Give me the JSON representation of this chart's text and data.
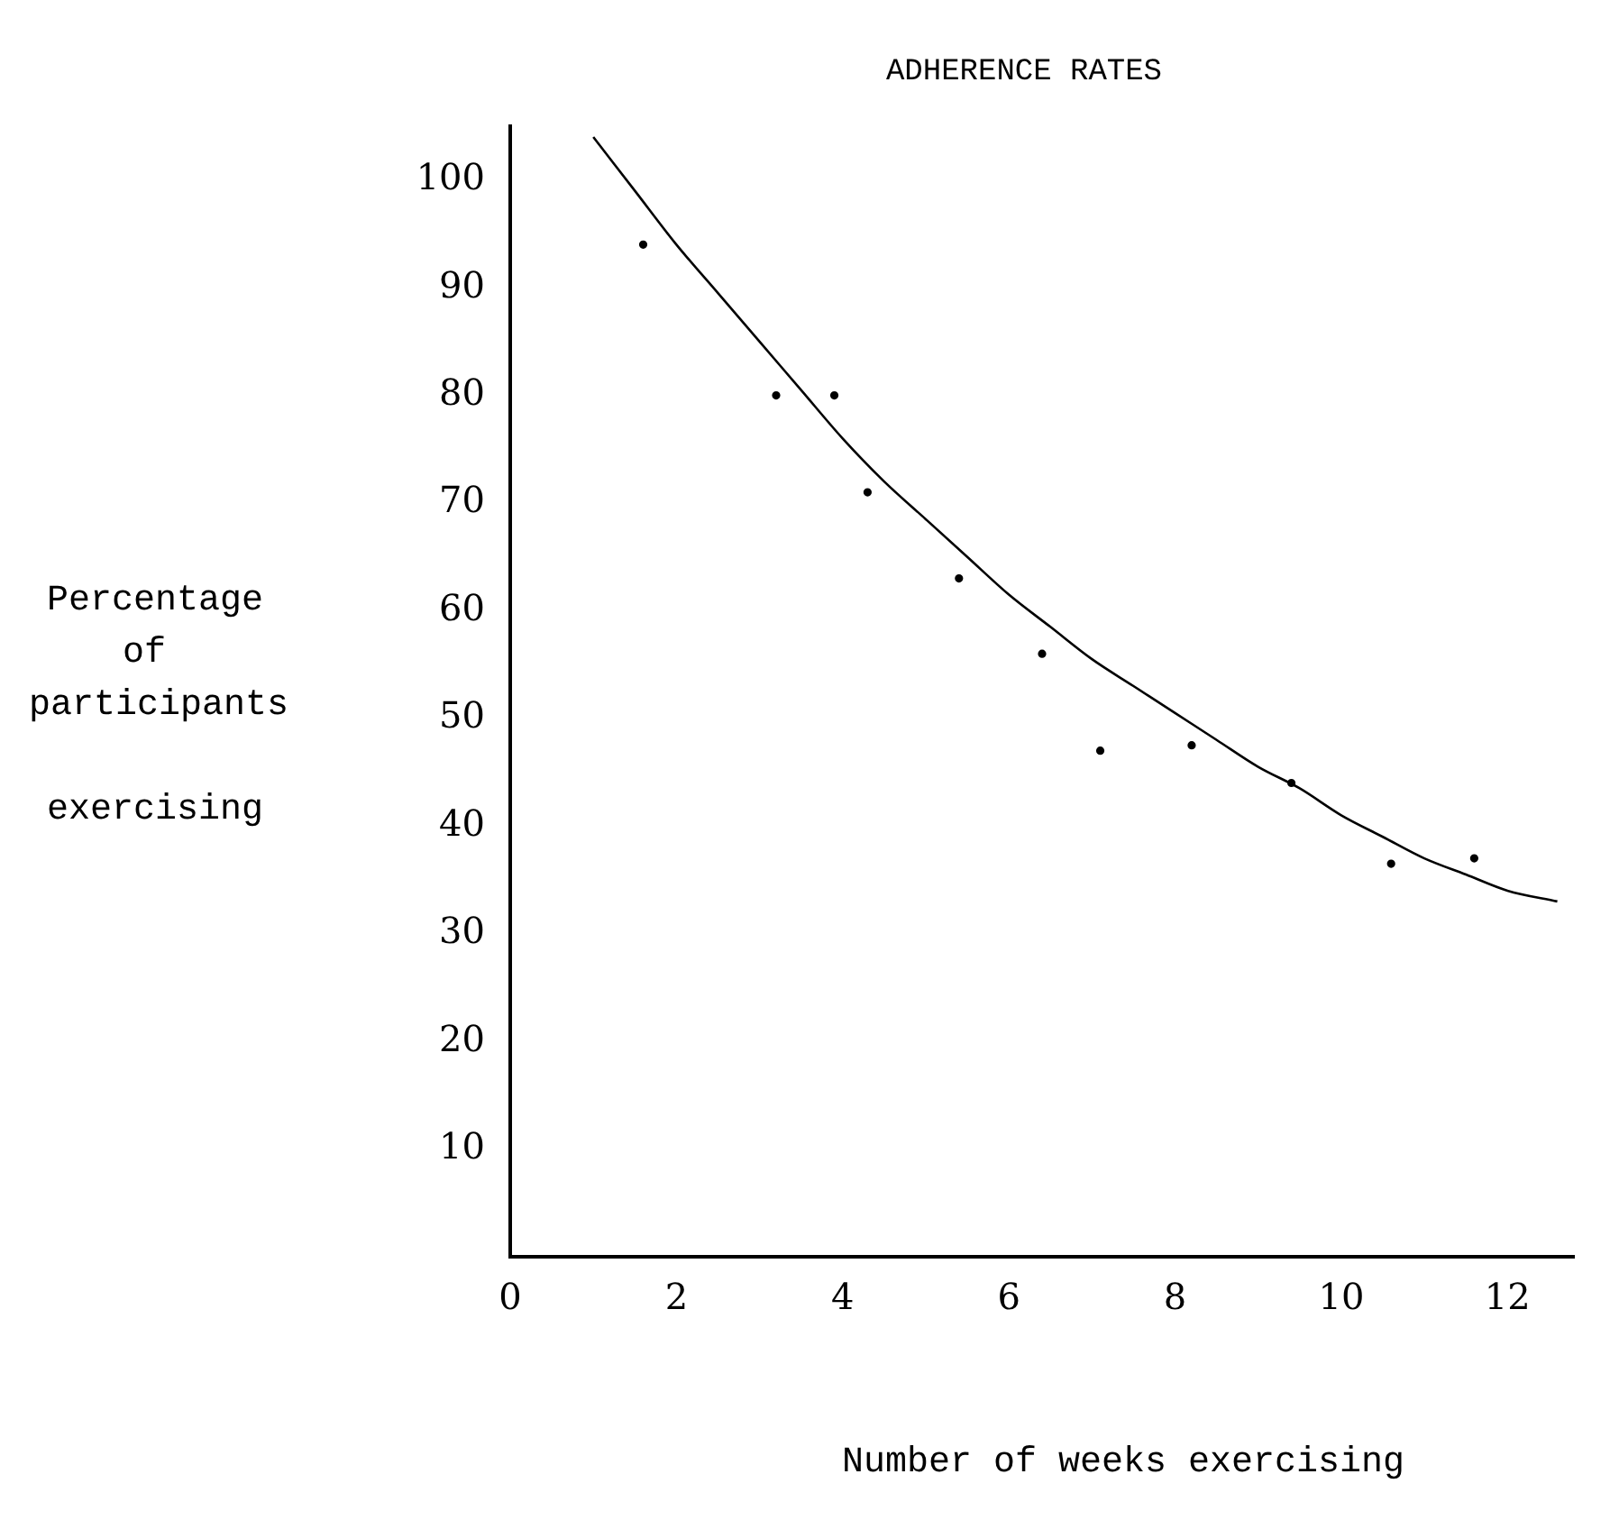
{
  "chart_data": {
    "type": "scatter",
    "title": "ADHERENCE RATES",
    "xlabel": "Number of weeks exercising",
    "ylabel": "Percentage of participants exercising",
    "xlim": [
      0,
      12.8
    ],
    "ylim": [
      0,
      105
    ],
    "xticks": [
      0,
      2,
      4,
      6,
      8,
      10,
      12
    ],
    "yticks": [
      10,
      20,
      30,
      40,
      50,
      60,
      70,
      80,
      90,
      100
    ],
    "grid": false,
    "legend": false,
    "series": [
      {
        "type": "scatter",
        "marker": "circle",
        "color": "#000000",
        "x": [
          1.6,
          3.2,
          3.9,
          4.3,
          5.4,
          6.4,
          7.1,
          8.2,
          9.4,
          10.6,
          11.6
        ],
        "values": [
          94,
          80,
          80,
          71,
          63,
          56,
          47,
          47.5,
          44,
          36.5,
          37
        ]
      },
      {
        "type": "line",
        "marker": "none",
        "color": "#000000",
        "x": [
          1,
          1.5,
          2,
          2.5,
          3,
          3.5,
          4,
          4.5,
          5,
          5.5,
          6,
          6.5,
          7,
          7.5,
          8,
          8.5,
          9,
          9.5,
          10,
          10.5,
          11,
          11.5,
          12,
          12.6
        ],
        "values": [
          104,
          99,
          94,
          89.5,
          85,
          80.5,
          76,
          72,
          68.5,
          65,
          61.5,
          58.5,
          55.5,
          53,
          50.5,
          48,
          45.5,
          43.5,
          41,
          39,
          37,
          35.5,
          34,
          33
        ]
      }
    ]
  }
}
